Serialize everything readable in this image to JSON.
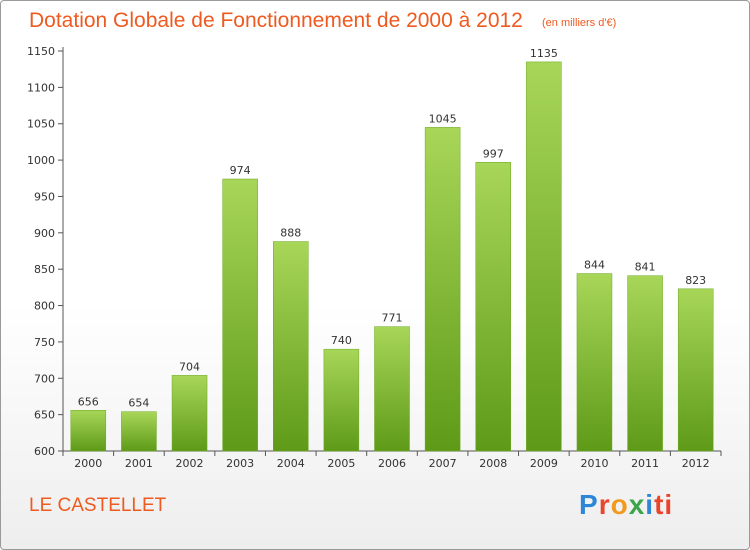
{
  "header": {
    "title": "Dotation Globale de Fonctionnement de 2000 à 2012",
    "subtitle": "(en milliers d'€)"
  },
  "footer": {
    "commune": "LE CASTELLET",
    "logo_letters": [
      "P",
      "r",
      "o",
      "x",
      "i",
      "t",
      "i"
    ]
  },
  "chart_data": {
    "type": "bar",
    "title": "Dotation Globale de Fonctionnement de 2000 à 2012",
    "subtitle": "(en milliers d'€)",
    "xlabel": "",
    "ylabel": "",
    "categories": [
      "2000",
      "2001",
      "2002",
      "2003",
      "2004",
      "2005",
      "2006",
      "2007",
      "2008",
      "2009",
      "2010",
      "2011",
      "2012"
    ],
    "values": [
      656,
      654,
      704,
      974,
      888,
      740,
      771,
      1045,
      997,
      1135,
      844,
      841,
      823
    ],
    "ylim": [
      600,
      1150
    ],
    "yticks": [
      600,
      650,
      700,
      750,
      800,
      850,
      900,
      950,
      1000,
      1050,
      1100,
      1150
    ],
    "grid": false,
    "colors": {
      "bar_top": "#a8d658",
      "bar_bottom": "#5e9a18",
      "bar_edge": "#6aa820"
    }
  }
}
